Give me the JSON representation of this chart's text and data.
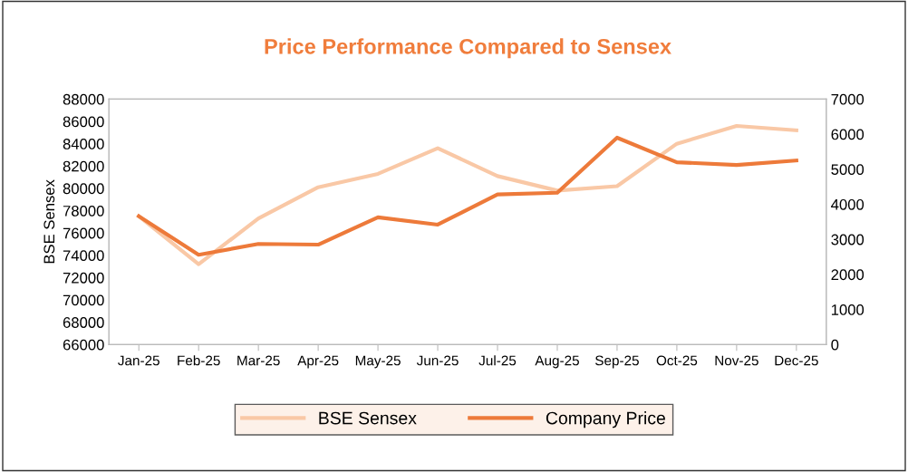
{
  "chart_data": {
    "type": "line",
    "title": "Price Performance Compared to Sensex",
    "ylabel": "BSE Sensex",
    "categories": [
      "Jan-25",
      "Feb-25",
      "Mar-25",
      "Apr-25",
      "May-25",
      "Jun-25",
      "Jul-25",
      "Aug-25",
      "Sep-25",
      "Oct-25",
      "Nov-25",
      "Dec-25"
    ],
    "series": [
      {
        "name": "BSE Sensex",
        "color": "#f9c8a6",
        "values": [
          77500,
          73200,
          77300,
          80100,
          81300,
          83600,
          81100,
          79800,
          80200,
          84000,
          85600,
          85200
        ]
      },
      {
        "name": "Company Price",
        "color": "#ed7a3a",
        "axis": "y2",
        "values": [
          3660,
          2560,
          2870,
          2850,
          3630,
          3420,
          4280,
          4330,
          5900,
          5200,
          5120,
          5250
        ]
      }
    ],
    "ylim": [
      66000,
      88000
    ],
    "yticks": [
      66000,
      68000,
      70000,
      72000,
      74000,
      76000,
      78000,
      80000,
      82000,
      84000,
      86000,
      88000
    ],
    "y2lim": [
      0,
      7000
    ],
    "y2ticks": [
      0,
      1000,
      2000,
      3000,
      4000,
      5000,
      6000,
      7000
    ],
    "grid": false,
    "legend": "bottom",
    "marker": "none",
    "line_style": "solid"
  }
}
